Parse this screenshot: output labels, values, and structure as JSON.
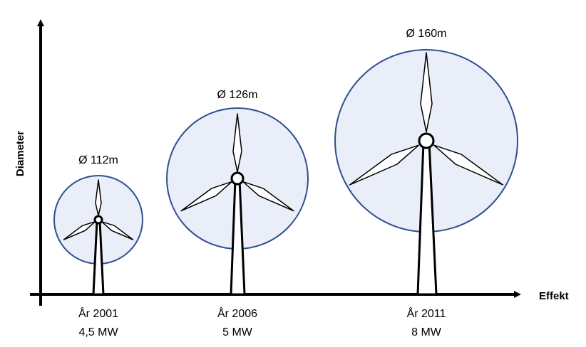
{
  "axes": {
    "y_label": "Diameter",
    "x_label": "Effekt"
  },
  "turbines": [
    {
      "diameter_label": "Ø 112m",
      "year_label": "År 2001",
      "power_label": "4,5 MW"
    },
    {
      "diameter_label": "Ø 126m",
      "year_label": "År 2006",
      "power_label": "5 MW"
    },
    {
      "diameter_label": "Ø 160m",
      "year_label": "År 2011",
      "power_label": "8 MW"
    }
  ],
  "colors": {
    "rotor_fill": "#e9eef8",
    "rotor_stroke": "#2f4f8f",
    "line": "#000000"
  }
}
